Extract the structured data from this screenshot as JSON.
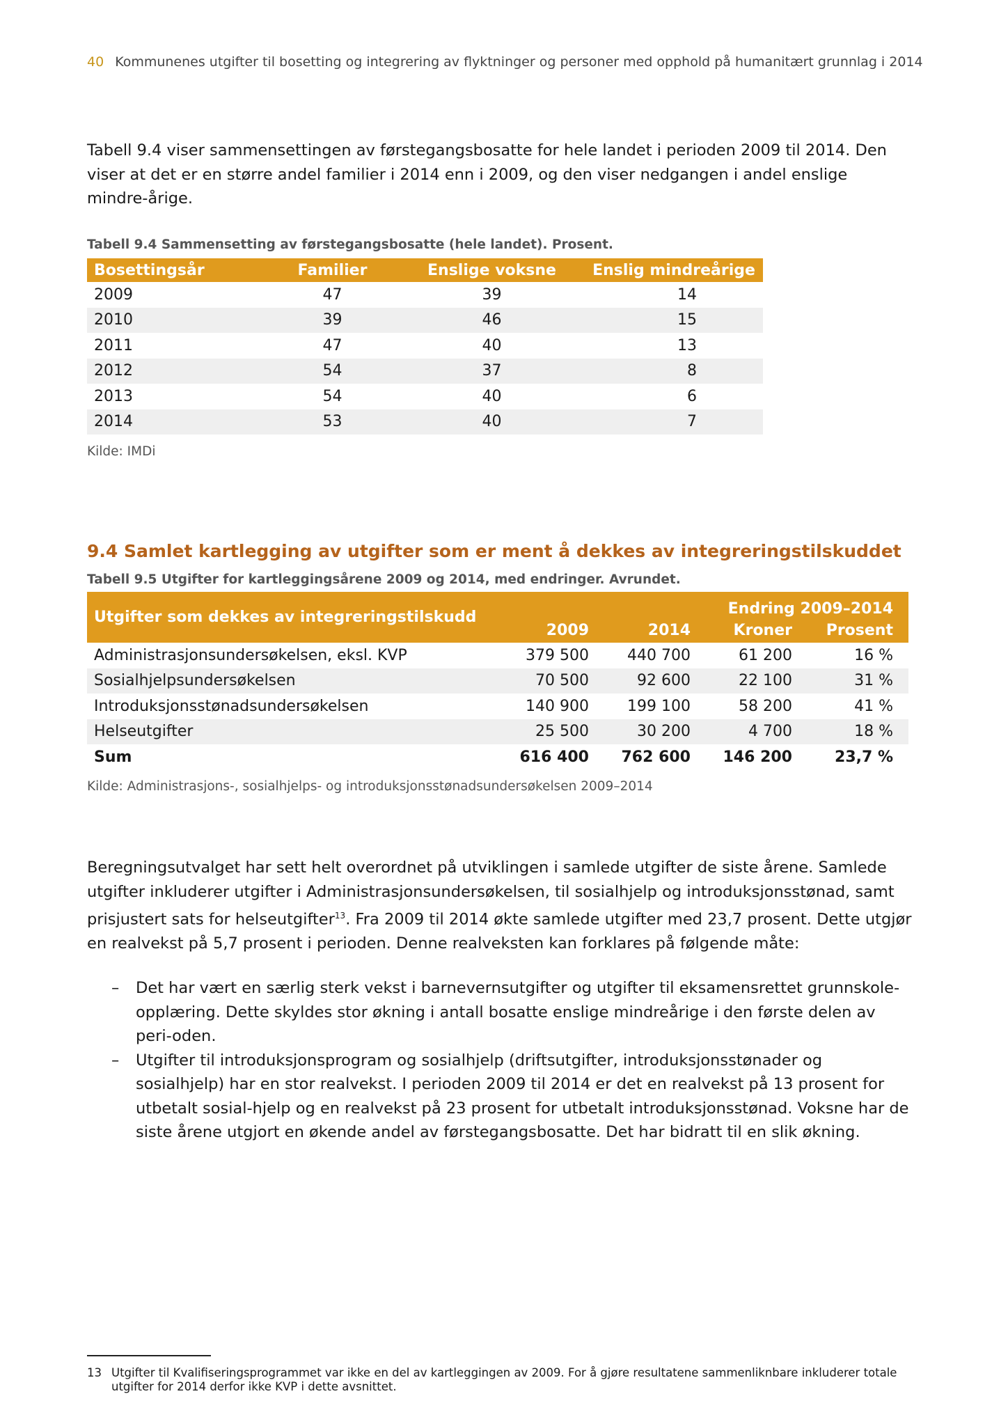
{
  "header": {
    "page_number": "40",
    "title": "Kommunenes utgifter til bosetting og integrering av flyktninger og personer med opphold på humanitært grunnlag i 2014"
  },
  "intro": "Tabell 9.4 viser sammensettingen av førstegangsbosatte for hele landet i perioden 2009 til 2014. Den viser at det er en større andel familier i 2014 enn i 2009, og den viser nedgangen i andel enslige mindre-årige.",
  "table1": {
    "caption": "Tabell 9.4 Sammensetting av førstegangsbosatte (hele landet). Prosent.",
    "headers": [
      "Bosettingsår",
      "Familier",
      "Enslige voksne",
      "Enslig mindreårige"
    ],
    "rows": [
      [
        "2009",
        "47",
        "39",
        "14"
      ],
      [
        "2010",
        "39",
        "46",
        "15"
      ],
      [
        "2011",
        "47",
        "40",
        "13"
      ],
      [
        "2012",
        "54",
        "37",
        "8"
      ],
      [
        "2013",
        "54",
        "40",
        "6"
      ],
      [
        "2014",
        "53",
        "40",
        "7"
      ]
    ],
    "source": "Kilde: IMDi"
  },
  "section_heading": "9.4 Samlet kartlegging av utgifter som er ment å dekkes av integreringstilskuddet",
  "table2": {
    "caption": "Tabell 9.5 Utgifter for kartleggingsårene 2009 og 2014, med endringer. Avrundet.",
    "header_label": "Utgifter som dekkes av integreringstilskudd",
    "header_group": "Endring 2009–2014",
    "headers": [
      "2009",
      "2014",
      "Kroner",
      "Prosent"
    ],
    "rows": [
      [
        "Administrasjonsundersøkelsen, eksl. KVP",
        "379 500",
        "440 700",
        "61 200",
        "16 %"
      ],
      [
        "Sosialhjelpsundersøkelsen",
        "70 500",
        "92 600",
        "22 100",
        "31 %"
      ],
      [
        "Introduksjonsstønadsundersøkelsen",
        "140 900",
        "199 100",
        "58 200",
        "41 %"
      ],
      [
        "Helseutgifter",
        "25 500",
        "30 200",
        "4 700",
        "18 %"
      ]
    ],
    "sum": [
      "Sum",
      "616 400",
      "762 600",
      "146 200",
      "23,7 %"
    ],
    "source": "Kilde: Administrasjons-, sosialhjelps- og introduksjonsstønadsundersøkelsen 2009–2014"
  },
  "body": {
    "p1_a": "Beregningsutvalget har sett helt overordnet på utviklingen i samlede utgifter de siste årene. Samlede utgifter inkluderer utgifter i Administrasjonsundersøkelsen, til sosialhjelp og introduksjonsstønad, samt prisjustert sats for helseutgifter",
    "p1_sup": "13",
    "p1_b": ". Fra 2009 til 2014 økte samlede utgifter med 23,7 prosent. Dette utgjør en realvekst på 5,7 prosent i perioden. Denne realveksten kan forklares på følgende måte:",
    "bullets": [
      "Det har vært en særlig sterk vekst i barnevernsutgifter og utgifter til eksamensrettet grunnskole-opplæring. Dette skyldes stor økning i antall bosatte enslige mindreårige i den første delen av peri-oden.",
      "Utgifter til introduksjonsprogram og sosialhjelp (driftsutgifter, introduksjonsstønader og sosialhjelp) har en stor realvekst. I perioden 2009 til 2014 er det en realvekst på 13 prosent for utbetalt sosial-hjelp og en realvekst på 23 prosent for utbetalt introduksjonsstønad. Voksne har de siste årene utgjort en økende andel av førstegangsbosatte. Det har bidratt til en slik økning."
    ],
    "bullet_marker": "–"
  },
  "footnote": {
    "number": "13",
    "text": "Utgifter til Kvalifiseringsprogrammet var ikke en del av kartleggingen av 2009. For å gjøre resultatene sammenliknbare inkluderer totale utgifter for 2014 derfor ikke KVP i dette avsnittet."
  },
  "colors": {
    "table_header": "#e09b1e",
    "heading": "#b5631b",
    "page_number": "#c8961c",
    "row_alt": "#efefef"
  }
}
